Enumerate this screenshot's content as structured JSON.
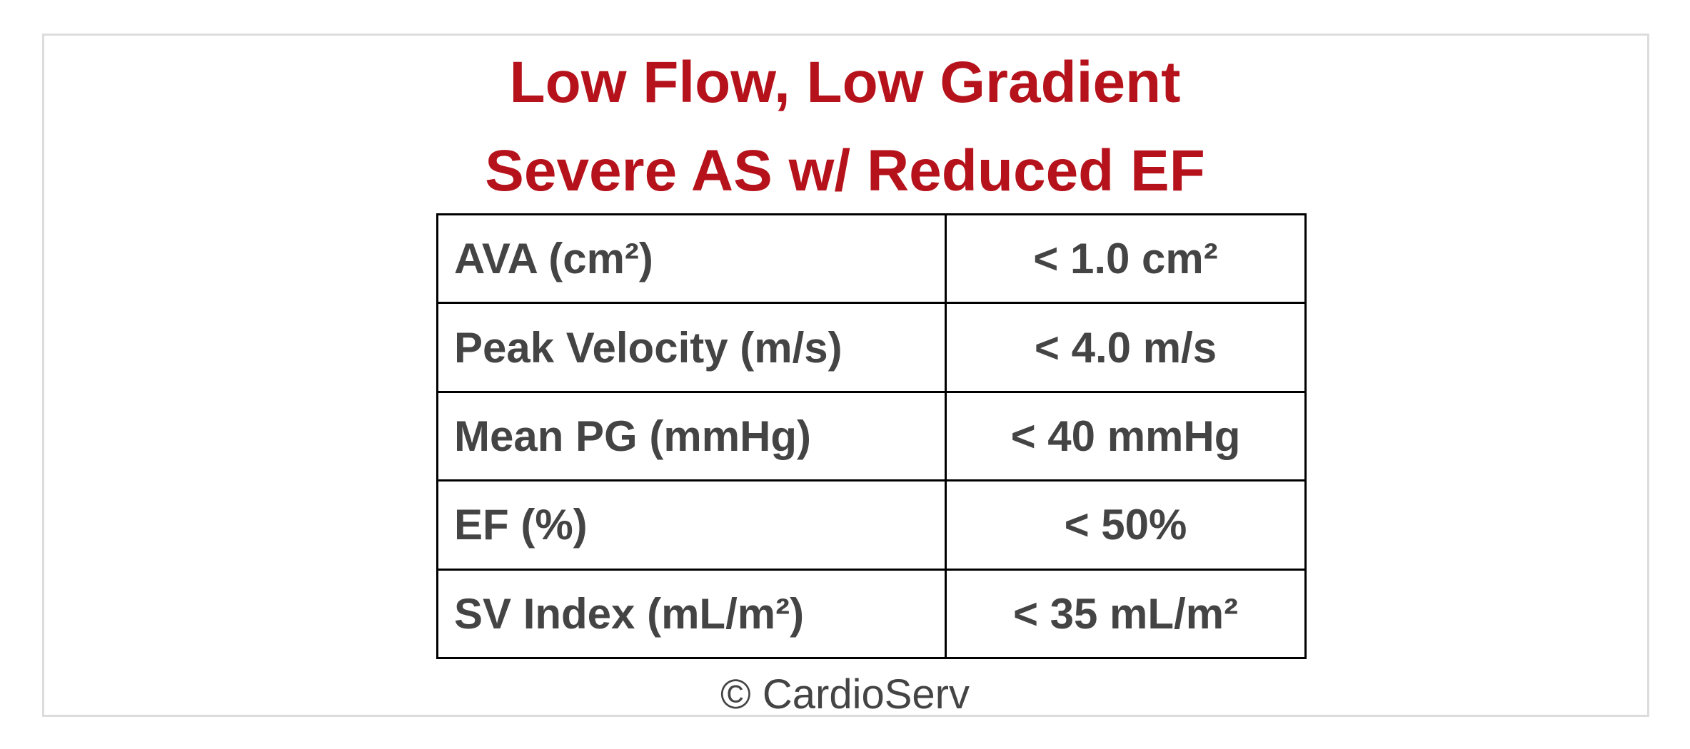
{
  "title": {
    "line1": "Low Flow, Low Gradient",
    "line2": "Severe AS w/ Reduced EF"
  },
  "table": {
    "rows": [
      [
        "AVA (cm²)",
        "< 1.0 cm²"
      ],
      [
        "Peak Velocity (m/s)",
        "< 4.0 m/s"
      ],
      [
        "Mean PG (mmHg)",
        "< 40 mmHg"
      ],
      [
        "EF (%)",
        "< 50%"
      ],
      [
        "SV Index (mL/m²)",
        "< 35 mL/m²"
      ]
    ]
  },
  "footer": "© CardioServ"
}
